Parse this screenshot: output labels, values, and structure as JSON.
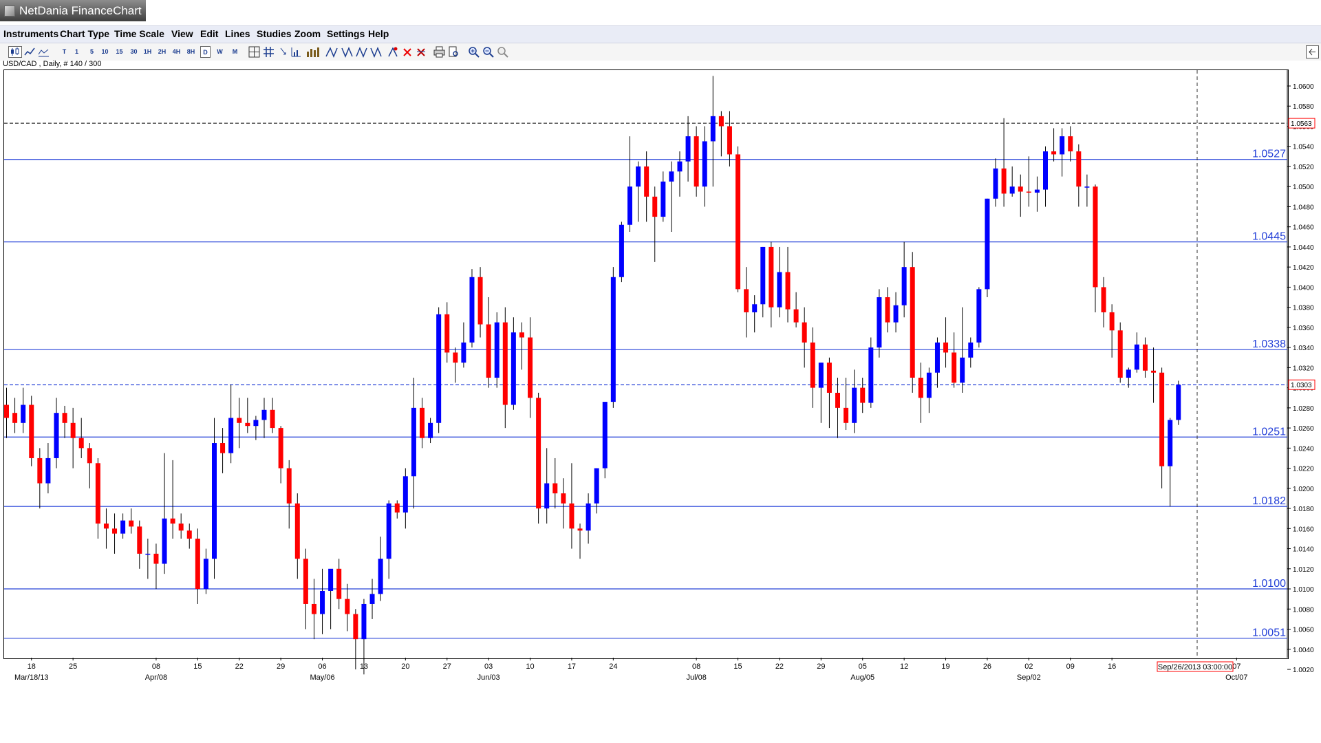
{
  "window": {
    "title": "NetDania FinanceChart"
  },
  "menu": [
    "Instruments",
    "Chart Type",
    "Time Scale",
    "View",
    "Edit",
    "Lines",
    "Studies",
    "Zoom",
    "Settings",
    "Help"
  ],
  "toolbar": {
    "timeframes": [
      "T",
      "1",
      "5",
      "10",
      "15",
      "30",
      "1H",
      "2H",
      "4H",
      "8H",
      "D",
      "W",
      "M"
    ],
    "selected": "D",
    "icons": [
      "candlestick-chart-icon",
      "line-chart-icon",
      "bar-chart-icon",
      "crosshair-icon",
      "grid-icon",
      "indicator-icon",
      "volume-icon",
      "trendline-icon",
      "parallel-icon",
      "fibonacci-icon",
      "delete-icon",
      "delete-all-icon",
      "print-icon",
      "print-preview-icon",
      "zoom-in-icon",
      "zoom-out-icon",
      "zoom-reset-icon"
    ]
  },
  "chart_title": "USD/CAD , Daily, # 140 / 300",
  "chart_data": {
    "type": "candlestick",
    "symbol": "USD/CAD",
    "interval": "Daily",
    "ylim": [
      1.0005,
      1.062
    ],
    "yticks": [
      "1.0020",
      "1.0040",
      "1.0060",
      "1.0080",
      "1.0100",
      "1.0120",
      "1.0140",
      "1.0160",
      "1.0180",
      "1.0200",
      "1.0220",
      "1.0240",
      "1.0260",
      "1.0280",
      "1.0300",
      "1.0320",
      "1.0340",
      "1.0360",
      "1.0380",
      "1.0400",
      "1.0420",
      "1.0440",
      "1.0460",
      "1.0480",
      "1.0500",
      "1.0520",
      "1.0540",
      "1.0560",
      "1.0580",
      "1.0600"
    ],
    "horizontal_lines": [
      1.0527,
      1.0445,
      1.0338,
      1.0251,
      1.0182,
      1.01,
      1.0051
    ],
    "horizontal_line_labels": [
      "1.0527",
      "1.0445",
      "1.0338",
      "1.0251",
      "1.0182",
      "1.0100",
      "1.0051"
    ],
    "marker_lines": [
      {
        "value": 1.0563,
        "label": "1.0563",
        "color": "#ff0000"
      },
      {
        "value": 1.0303,
        "label": "1.0303",
        "color": "#ff0000"
      }
    ],
    "current_date": "Sep/26/2013 03:00:00",
    "xticks": [
      "18",
      "25",
      "08",
      "15",
      "22",
      "29",
      "06",
      "13",
      "20",
      "27",
      "03",
      "10",
      "17",
      "24",
      "08",
      "15",
      "22",
      "29",
      "05",
      "12",
      "19",
      "26",
      "02",
      "09",
      "16",
      "07"
    ],
    "xtick_index": [
      3,
      8,
      18,
      23,
      28,
      33,
      38,
      43,
      48,
      53,
      58,
      63,
      68,
      73,
      83,
      88,
      93,
      98,
      103,
      108,
      113,
      118,
      123,
      128,
      133,
      148
    ],
    "month_labels": [
      "Mar/18/13",
      "Apr/08",
      "May/06",
      "Jun/03",
      "Jul/08",
      "Aug/05",
      "Sep/02",
      "Oct/07"
    ],
    "month_index": [
      3,
      18,
      38,
      58,
      83,
      103,
      123,
      148
    ],
    "up_color": "#0000ff",
    "down_color": "#ff0000",
    "candles": [
      [
        1.0283,
        1.03,
        1.025,
        1.027
      ],
      [
        1.0275,
        1.029,
        1.0255,
        1.0265
      ],
      [
        1.0265,
        1.03,
        1.0255,
        1.0283
      ],
      [
        1.0283,
        1.0292,
        1.0222,
        1.023
      ],
      [
        1.023,
        1.024,
        1.018,
        1.0205
      ],
      [
        1.0205,
        1.0245,
        1.0195,
        1.023
      ],
      [
        1.023,
        1.029,
        1.022,
        1.0275
      ],
      [
        1.0275,
        1.0282,
        1.025,
        1.0265
      ],
      [
        1.0265,
        1.028,
        1.022,
        1.025
      ],
      [
        1.025,
        1.027,
        1.023,
        1.024
      ],
      [
        1.024,
        1.0245,
        1.02,
        1.0225
      ],
      [
        1.0225,
        1.023,
        1.015,
        1.0165
      ],
      [
        1.0165,
        1.018,
        1.014,
        1.016
      ],
      [
        1.016,
        1.0175,
        1.0135,
        1.0155
      ],
      [
        1.0155,
        1.0175,
        1.015,
        1.0168
      ],
      [
        1.0168,
        1.018,
        1.0155,
        1.0162
      ],
      [
        1.0162,
        1.0168,
        1.012,
        1.0135
      ],
      [
        1.0135,
        1.015,
        1.011,
        1.0135
      ],
      [
        1.0135,
        1.0145,
        1.01,
        1.0125
      ],
      [
        1.0125,
        1.0235,
        1.0115,
        1.017
      ],
      [
        1.017,
        1.0228,
        1.015,
        1.0165
      ],
      [
        1.0165,
        1.0175,
        1.015,
        1.0158
      ],
      [
        1.0158,
        1.0165,
        1.014,
        1.015
      ],
      [
        1.015,
        1.016,
        1.0085,
        1.01
      ],
      [
        1.01,
        1.014,
        1.0095,
        1.013
      ],
      [
        1.013,
        1.027,
        1.011,
        1.0245
      ],
      [
        1.0245,
        1.026,
        1.0215,
        1.0235
      ],
      [
        1.0235,
        1.0303,
        1.0225,
        1.027
      ],
      [
        1.027,
        1.029,
        1.024,
        1.0265
      ],
      [
        1.0265,
        1.029,
        1.0255,
        1.0262
      ],
      [
        1.0262,
        1.0272,
        1.0248,
        1.0268
      ],
      [
        1.0268,
        1.029,
        1.025,
        1.0278
      ],
      [
        1.0278,
        1.029,
        1.0255,
        1.026
      ],
      [
        1.026,
        1.0262,
        1.0205,
        1.022
      ],
      [
        1.022,
        1.0228,
        1.016,
        1.0185
      ],
      [
        1.0185,
        1.0195,
        1.011,
        1.013
      ],
      [
        1.013,
        1.014,
        1.006,
        1.0085
      ],
      [
        1.0085,
        1.011,
        1.005,
        1.0075
      ],
      [
        1.0075,
        1.012,
        1.0055,
        1.0098
      ],
      [
        1.0098,
        1.0118,
        1.006,
        1.012
      ],
      [
        1.012,
        1.013,
        1.008,
        1.009
      ],
      [
        1.009,
        1.0105,
        1.0058,
        1.0075
      ],
      [
        1.0075,
        1.008,
        1.002,
        1.005
      ],
      [
        1.005,
        1.009,
        1.0015,
        1.0085
      ],
      [
        1.0085,
        1.011,
        1.007,
        1.0095
      ],
      [
        1.0095,
        1.0152,
        1.0088,
        1.013
      ],
      [
        1.013,
        1.0188,
        1.011,
        1.0185
      ],
      [
        1.0185,
        1.0188,
        1.017,
        1.0176
      ],
      [
        1.0176,
        1.022,
        1.016,
        1.0212
      ],
      [
        1.0212,
        1.031,
        1.018,
        1.028
      ],
      [
        1.028,
        1.029,
        1.024,
        1.025
      ],
      [
        1.025,
        1.027,
        1.0245,
        1.0265
      ],
      [
        1.0265,
        1.038,
        1.0255,
        1.0373
      ],
      [
        1.0373,
        1.0385,
        1.0325,
        1.0335
      ],
      [
        1.0335,
        1.034,
        1.0305,
        1.0325
      ],
      [
        1.0325,
        1.0365,
        1.032,
        1.0345
      ],
      [
        1.0345,
        1.0418,
        1.034,
        1.041
      ],
      [
        1.041,
        1.042,
        1.035,
        1.0363
      ],
      [
        1.0363,
        1.039,
        1.03,
        1.031
      ],
      [
        1.031,
        1.0375,
        1.03,
        1.0365
      ],
      [
        1.0365,
        1.038,
        1.026,
        1.0283
      ],
      [
        1.0283,
        1.037,
        1.0278,
        1.0355
      ],
      [
        1.0355,
        1.0365,
        1.0318,
        1.035
      ],
      [
        1.035,
        1.037,
        1.027,
        1.029
      ],
      [
        1.029,
        1.0295,
        1.0165,
        1.018
      ],
      [
        1.018,
        1.024,
        1.0165,
        1.0205
      ],
      [
        1.0205,
        1.023,
        1.018,
        1.0195
      ],
      [
        1.0195,
        1.021,
        1.016,
        1.0185
      ],
      [
        1.0185,
        1.0225,
        1.014,
        1.016
      ],
      [
        1.016,
        1.0165,
        1.013,
        1.0158
      ],
      [
        1.0158,
        1.0195,
        1.0145,
        1.0185
      ],
      [
        1.0185,
        1.022,
        1.0175,
        1.022
      ],
      [
        1.022,
        1.0285,
        1.021,
        1.0286
      ],
      [
        1.0286,
        1.042,
        1.028,
        1.041
      ],
      [
        1.041,
        1.0465,
        1.0405,
        1.0462
      ],
      [
        1.0462,
        1.055,
        1.0455,
        1.05
      ],
      [
        1.05,
        1.0525,
        1.0465,
        1.052
      ],
      [
        1.052,
        1.0535,
        1.0465,
        1.049
      ],
      [
        1.049,
        1.05,
        1.0425,
        1.047
      ],
      [
        1.047,
        1.0515,
        1.0465,
        1.0505
      ],
      [
        1.0505,
        1.0525,
        1.0455,
        1.0515
      ],
      [
        1.0515,
        1.0535,
        1.049,
        1.0525
      ],
      [
        1.0525,
        1.057,
        1.0505,
        1.055
      ],
      [
        1.055,
        1.056,
        1.049,
        1.05
      ],
      [
        1.05,
        1.056,
        1.048,
        1.0545
      ],
      [
        1.0545,
        1.061,
        1.05,
        1.057
      ],
      [
        1.057,
        1.0575,
        1.053,
        1.056
      ],
      [
        1.056,
        1.0575,
        1.052,
        1.0532
      ],
      [
        1.0532,
        1.054,
        1.0395,
        1.0398
      ],
      [
        1.0398,
        1.042,
        1.035,
        1.0375
      ],
      [
        1.0375,
        1.0392,
        1.0355,
        1.0383
      ],
      [
        1.0383,
        1.044,
        1.037,
        1.044
      ],
      [
        1.044,
        1.0445,
        1.036,
        1.038
      ],
      [
        1.038,
        1.044,
        1.037,
        1.0415
      ],
      [
        1.0415,
        1.044,
        1.0365,
        1.0378
      ],
      [
        1.0378,
        1.0395,
        1.036,
        1.0365
      ],
      [
        1.0365,
        1.038,
        1.032,
        1.0345
      ],
      [
        1.0345,
        1.036,
        1.028,
        1.03
      ],
      [
        1.03,
        1.0325,
        1.0265,
        1.0325
      ],
      [
        1.0325,
        1.033,
        1.026,
        1.0295
      ],
      [
        1.0295,
        1.031,
        1.025,
        1.028
      ],
      [
        1.028,
        1.031,
        1.0258,
        1.0265
      ],
      [
        1.0265,
        1.0318,
        1.0255,
        1.03
      ],
      [
        1.03,
        1.031,
        1.0275,
        1.0285
      ],
      [
        1.0285,
        1.035,
        1.028,
        1.034
      ],
      [
        1.034,
        1.0398,
        1.033,
        1.039
      ],
      [
        1.039,
        1.04,
        1.0355,
        1.0365
      ],
      [
        1.0365,
        1.0395,
        1.0355,
        1.0382
      ],
      [
        1.0382,
        1.0445,
        1.037,
        1.042
      ],
      [
        1.042,
        1.0435,
        1.0295,
        1.031
      ],
      [
        1.031,
        1.0325,
        1.0265,
        1.029
      ],
      [
        1.029,
        1.032,
        1.0275,
        1.0315
      ],
      [
        1.0315,
        1.035,
        1.03,
        1.0345
      ],
      [
        1.0345,
        1.037,
        1.032,
        1.0335
      ],
      [
        1.0335,
        1.0355,
        1.03,
        1.0305
      ],
      [
        1.0305,
        1.038,
        1.0295,
        1.033
      ],
      [
        1.033,
        1.035,
        1.032,
        1.0345
      ],
      [
        1.0345,
        1.04,
        1.034,
        1.0398
      ],
      [
        1.0398,
        1.0488,
        1.039,
        1.0488
      ],
      [
        1.0488,
        1.0528,
        1.048,
        1.0518
      ],
      [
        1.0518,
        1.0568,
        1.048,
        1.0493
      ],
      [
        1.0493,
        1.052,
        1.049,
        1.05
      ],
      [
        1.05,
        1.0512,
        1.047,
        1.0495
      ],
      [
        1.0495,
        1.053,
        1.048,
        1.0494
      ],
      [
        1.0494,
        1.051,
        1.0475,
        1.0497
      ],
      [
        1.0497,
        1.054,
        1.048,
        1.0535
      ],
      [
        1.0535,
        1.0558,
        1.0525,
        1.0532
      ],
      [
        1.0532,
        1.0558,
        1.051,
        1.055
      ],
      [
        1.055,
        1.056,
        1.0525,
        1.0535
      ],
      [
        1.0535,
        1.0542,
        1.048,
        1.05
      ],
      [
        1.05,
        1.0512,
        1.048,
        1.05
      ],
      [
        1.05,
        1.0502,
        1.0375,
        1.04
      ],
      [
        1.04,
        1.041,
        1.036,
        1.0375
      ],
      [
        1.0375,
        1.0383,
        1.033,
        1.0357
      ],
      [
        1.0357,
        1.0365,
        1.0305,
        1.031
      ],
      [
        1.031,
        1.032,
        1.03,
        1.0318
      ],
      [
        1.0318,
        1.0355,
        1.0315,
        1.0343
      ],
      [
        1.0343,
        1.035,
        1.031,
        1.0317
      ],
      [
        1.0317,
        1.034,
        1.0285,
        1.0315
      ],
      [
        1.0315,
        1.032,
        1.02,
        1.0222
      ],
      [
        1.0222,
        1.027,
        1.0182,
        1.0268
      ],
      [
        1.0268,
        1.0307,
        1.0263,
        1.0303
      ]
    ]
  }
}
